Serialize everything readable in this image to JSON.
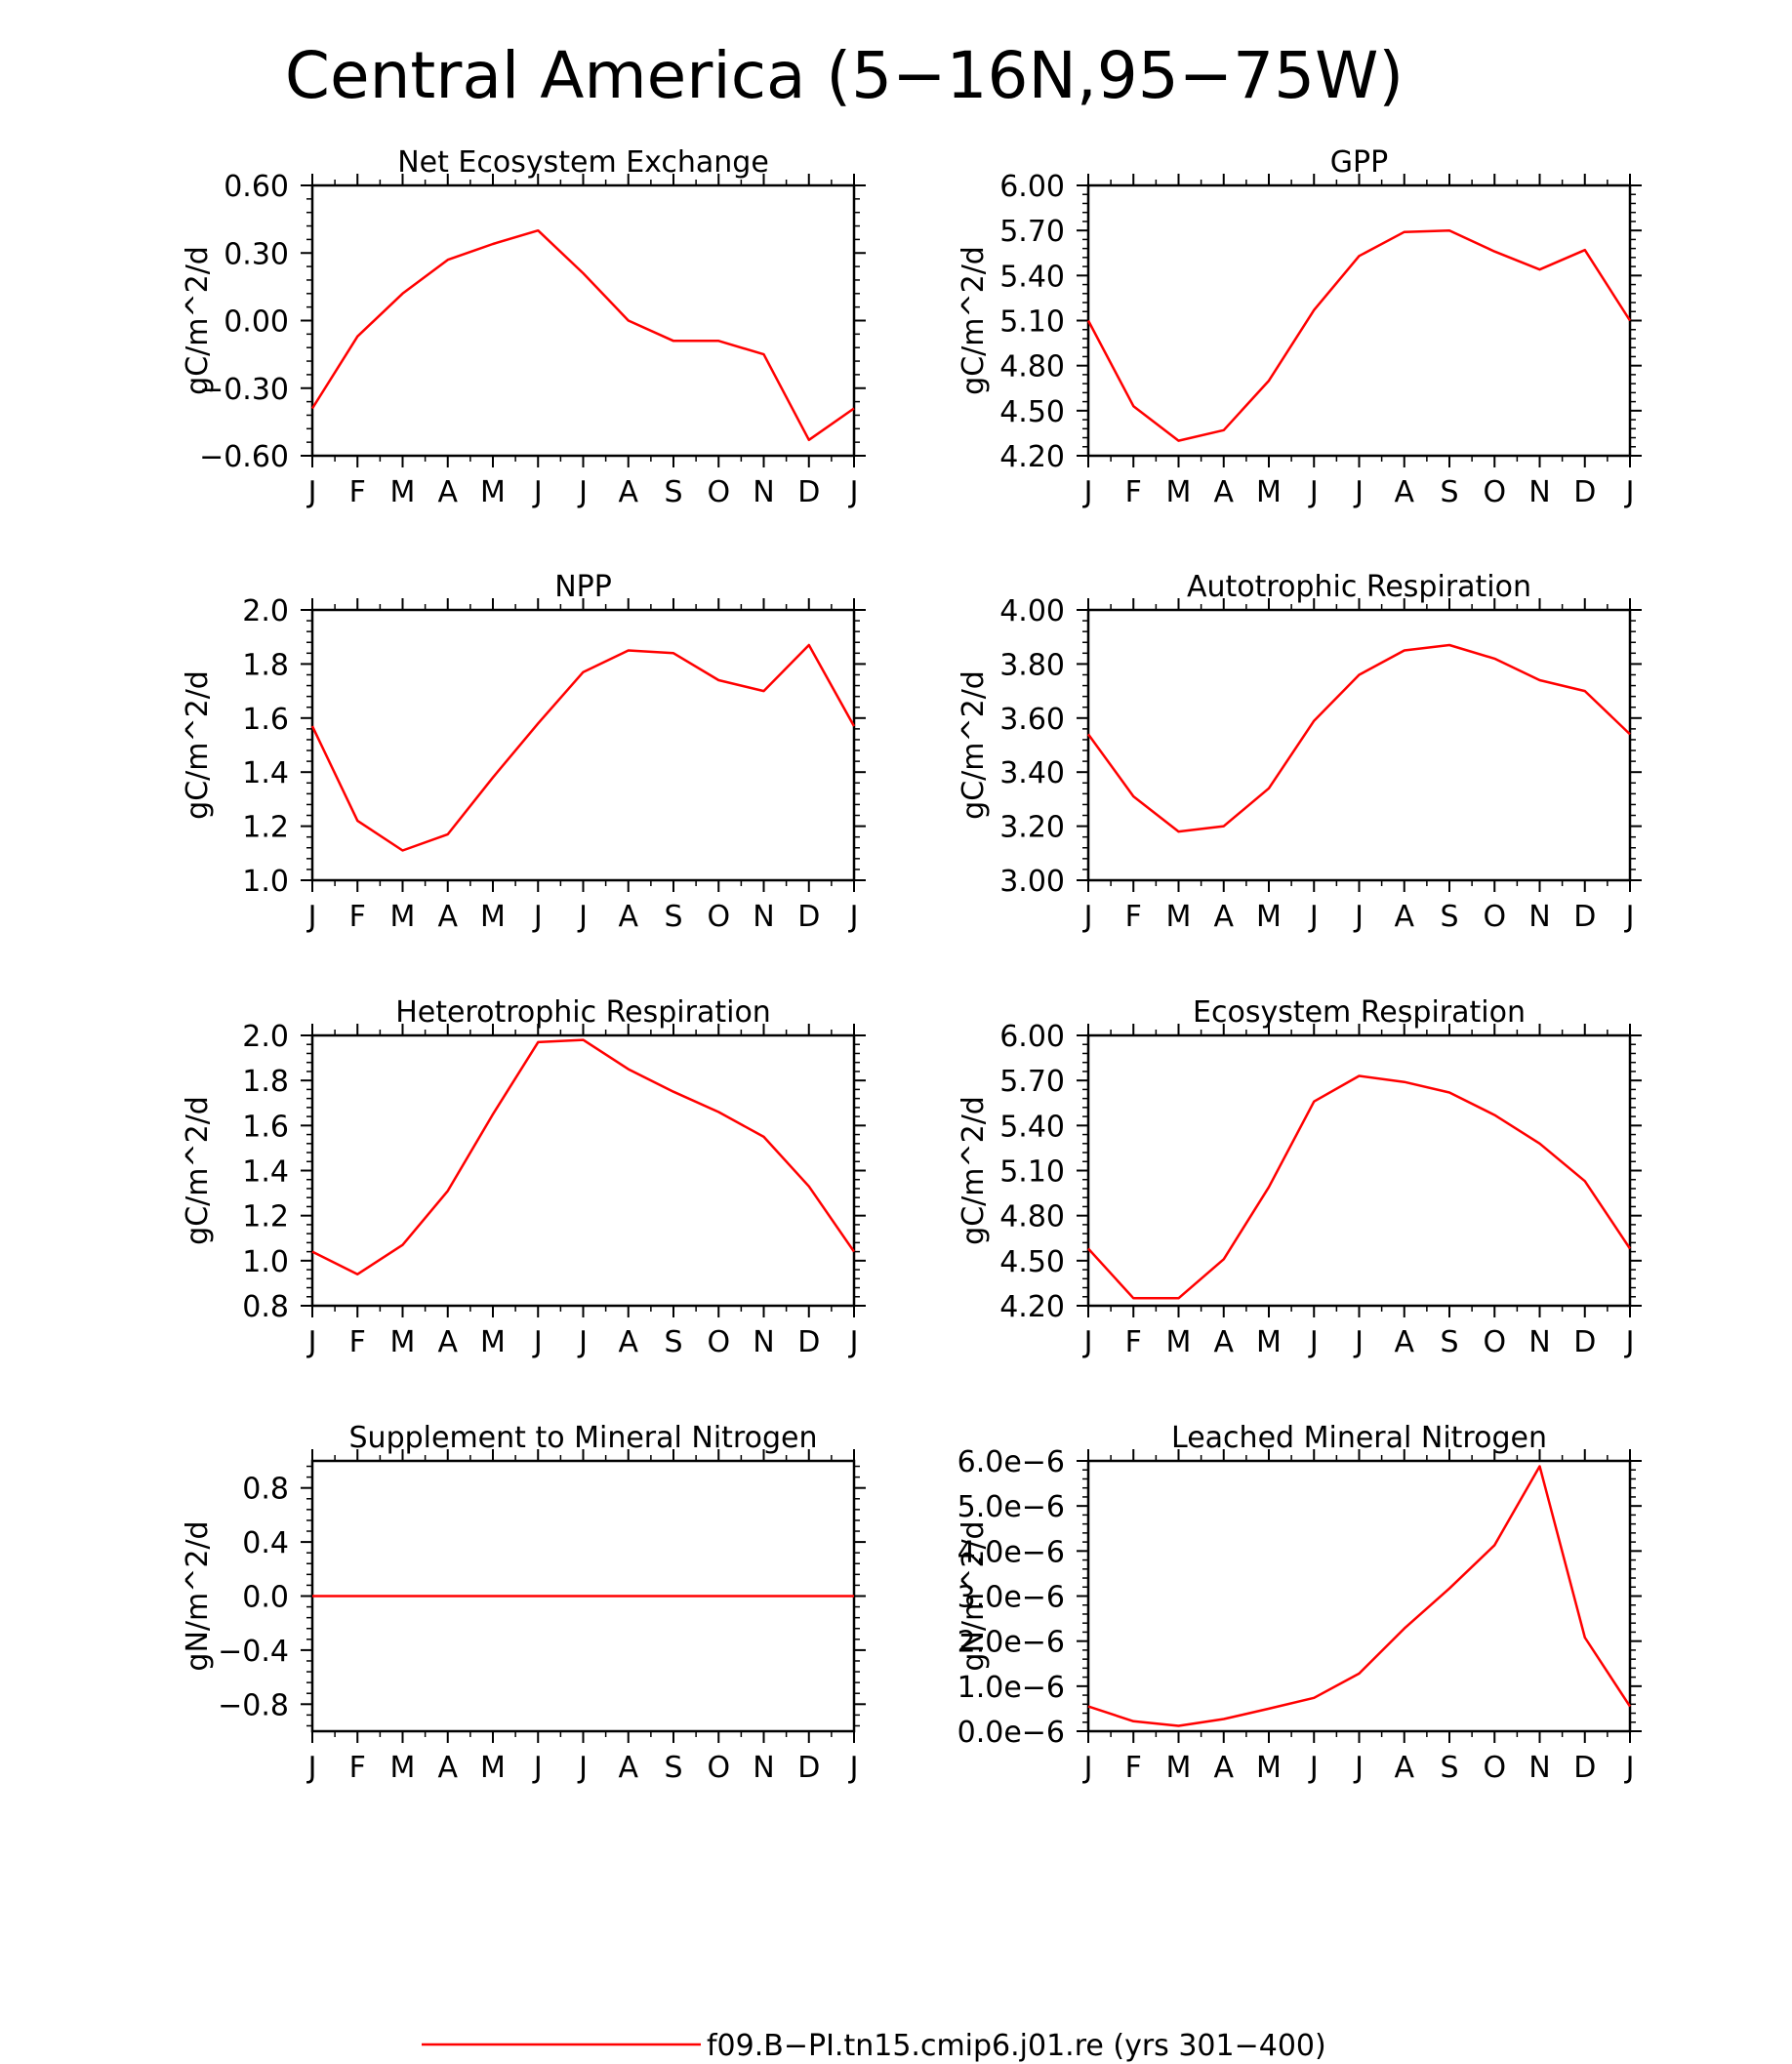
{
  "figure_title": "Central America (5−16N,95−75W)",
  "legend": {
    "label": "f09.B−PI.tn15.cmip6.j01.re (yrs 301−400)",
    "color": "#ff0000"
  },
  "series_color": "#ff0000",
  "chart_data": [
    {
      "type": "line",
      "title": "Net Ecosystem Exchange",
      "ylabel": "gC/m^2/d",
      "x": [
        "J",
        "F",
        "M",
        "A",
        "M",
        "J",
        "J",
        "A",
        "S",
        "O",
        "N",
        "D",
        "J"
      ],
      "ylim": [
        -0.6,
        0.6
      ],
      "yticks": [
        "−0.60",
        "−0.30",
        "0.00",
        "0.30",
        "0.60"
      ],
      "ytick_values": [
        -0.6,
        -0.3,
        0.0,
        0.3,
        0.6
      ],
      "values": [
        -0.39,
        -0.07,
        0.12,
        0.27,
        0.34,
        0.4,
        0.21,
        0.0,
        -0.09,
        -0.09,
        -0.15,
        -0.53,
        -0.39
      ]
    },
    {
      "type": "line",
      "title": "GPP",
      "ylabel": "gC/m^2/d",
      "x": [
        "J",
        "F",
        "M",
        "A",
        "M",
        "J",
        "J",
        "A",
        "S",
        "O",
        "N",
        "D",
        "J"
      ],
      "ylim": [
        4.2,
        6.0
      ],
      "yticks": [
        "4.20",
        "4.50",
        "4.80",
        "5.10",
        "5.40",
        "5.70",
        "6.00"
      ],
      "ytick_values": [
        4.2,
        4.5,
        4.8,
        5.1,
        5.4,
        5.7,
        6.0
      ],
      "values": [
        5.1,
        4.53,
        4.3,
        4.37,
        4.7,
        5.17,
        5.53,
        5.69,
        5.7,
        5.56,
        5.44,
        5.57,
        5.1
      ]
    },
    {
      "type": "line",
      "title": "NPP",
      "ylabel": "gC/m^2/d",
      "x": [
        "J",
        "F",
        "M",
        "A",
        "M",
        "J",
        "J",
        "A",
        "S",
        "O",
        "N",
        "D",
        "J"
      ],
      "ylim": [
        1.0,
        2.0
      ],
      "yticks": [
        "1.0",
        "1.2",
        "1.4",
        "1.6",
        "1.8",
        "2.0"
      ],
      "ytick_values": [
        1.0,
        1.2,
        1.4,
        1.6,
        1.8,
        2.0
      ],
      "values": [
        1.57,
        1.22,
        1.11,
        1.17,
        1.38,
        1.58,
        1.77,
        1.85,
        1.84,
        1.74,
        1.7,
        1.87,
        1.57
      ]
    },
    {
      "type": "line",
      "title": "Autotrophic Respiration",
      "ylabel": "gC/m^2/d",
      "x": [
        "J",
        "F",
        "M",
        "A",
        "M",
        "J",
        "J",
        "A",
        "S",
        "O",
        "N",
        "D",
        "J"
      ],
      "ylim": [
        3.0,
        4.0
      ],
      "yticks": [
        "3.00",
        "3.20",
        "3.40",
        "3.60",
        "3.80",
        "4.00"
      ],
      "ytick_values": [
        3.0,
        3.2,
        3.4,
        3.6,
        3.8,
        4.0
      ],
      "values": [
        3.54,
        3.31,
        3.18,
        3.2,
        3.34,
        3.59,
        3.76,
        3.85,
        3.87,
        3.82,
        3.74,
        3.7,
        3.54
      ]
    },
    {
      "type": "line",
      "title": "Heterotrophic Respiration",
      "ylabel": "gC/m^2/d",
      "x": [
        "J",
        "F",
        "M",
        "A",
        "M",
        "J",
        "J",
        "A",
        "S",
        "O",
        "N",
        "D",
        "J"
      ],
      "ylim": [
        0.8,
        2.0
      ],
      "yticks": [
        "0.8",
        "1.0",
        "1.2",
        "1.4",
        "1.6",
        "1.8",
        "2.0"
      ],
      "ytick_values": [
        0.8,
        1.0,
        1.2,
        1.4,
        1.6,
        1.8,
        2.0
      ],
      "values": [
        1.04,
        0.94,
        1.07,
        1.31,
        1.65,
        1.97,
        1.98,
        1.85,
        1.75,
        1.66,
        1.55,
        1.33,
        1.04
      ]
    },
    {
      "type": "line",
      "title": "Ecosystem Respiration",
      "ylabel": "gC/m^2/d",
      "x": [
        "J",
        "F",
        "M",
        "A",
        "M",
        "J",
        "J",
        "A",
        "S",
        "O",
        "N",
        "D",
        "J"
      ],
      "ylim": [
        4.2,
        6.0
      ],
      "yticks": [
        "4.20",
        "4.50",
        "4.80",
        "5.10",
        "5.40",
        "5.70",
        "6.00"
      ],
      "ytick_values": [
        4.2,
        4.5,
        4.8,
        5.1,
        5.4,
        5.7,
        6.0
      ],
      "values": [
        4.58,
        4.25,
        4.25,
        4.51,
        4.99,
        5.56,
        5.73,
        5.69,
        5.62,
        5.47,
        5.28,
        5.03,
        4.58
      ]
    },
    {
      "type": "line",
      "title": "Supplement to Mineral Nitrogen",
      "ylabel": "gN/m^2/d",
      "x": [
        "J",
        "F",
        "M",
        "A",
        "M",
        "J",
        "J",
        "A",
        "S",
        "O",
        "N",
        "D",
        "J"
      ],
      "ylim": [
        -1.0,
        1.0
      ],
      "yticks": [
        "−0.8",
        "−0.4",
        "0.0",
        "0.4",
        "0.8"
      ],
      "ytick_values": [
        -0.8,
        -0.4,
        0.0,
        0.4,
        0.8
      ],
      "values": [
        0,
        0,
        0,
        0,
        0,
        0,
        0,
        0,
        0,
        0,
        0,
        0,
        0
      ]
    },
    {
      "type": "line",
      "title": "Leached Mineral Nitrogen",
      "ylabel": "gN/m^2/d",
      "x": [
        "J",
        "F",
        "M",
        "A",
        "M",
        "J",
        "J",
        "A",
        "S",
        "O",
        "N",
        "D",
        "J"
      ],
      "ylim": [
        0.0,
        6e-06
      ],
      "yticks": [
        "0.0e−6",
        "1.0e−6",
        "2.0e−6",
        "3.0e−6",
        "4.0e−6",
        "5.0e−6",
        "6.0e−6"
      ],
      "ytick_values": [
        0.0,
        1e-06,
        2e-06,
        3e-06,
        4e-06,
        5e-06,
        6e-06
      ],
      "values": [
        5.5e-07,
        2.2e-07,
        1.2e-07,
        2.7e-07,
        5e-07,
        7.4e-07,
        1.28e-06,
        2.28e-06,
        3.17e-06,
        4.13e-06,
        5.88e-06,
        2.08e-06,
        5.5e-07
      ]
    }
  ]
}
